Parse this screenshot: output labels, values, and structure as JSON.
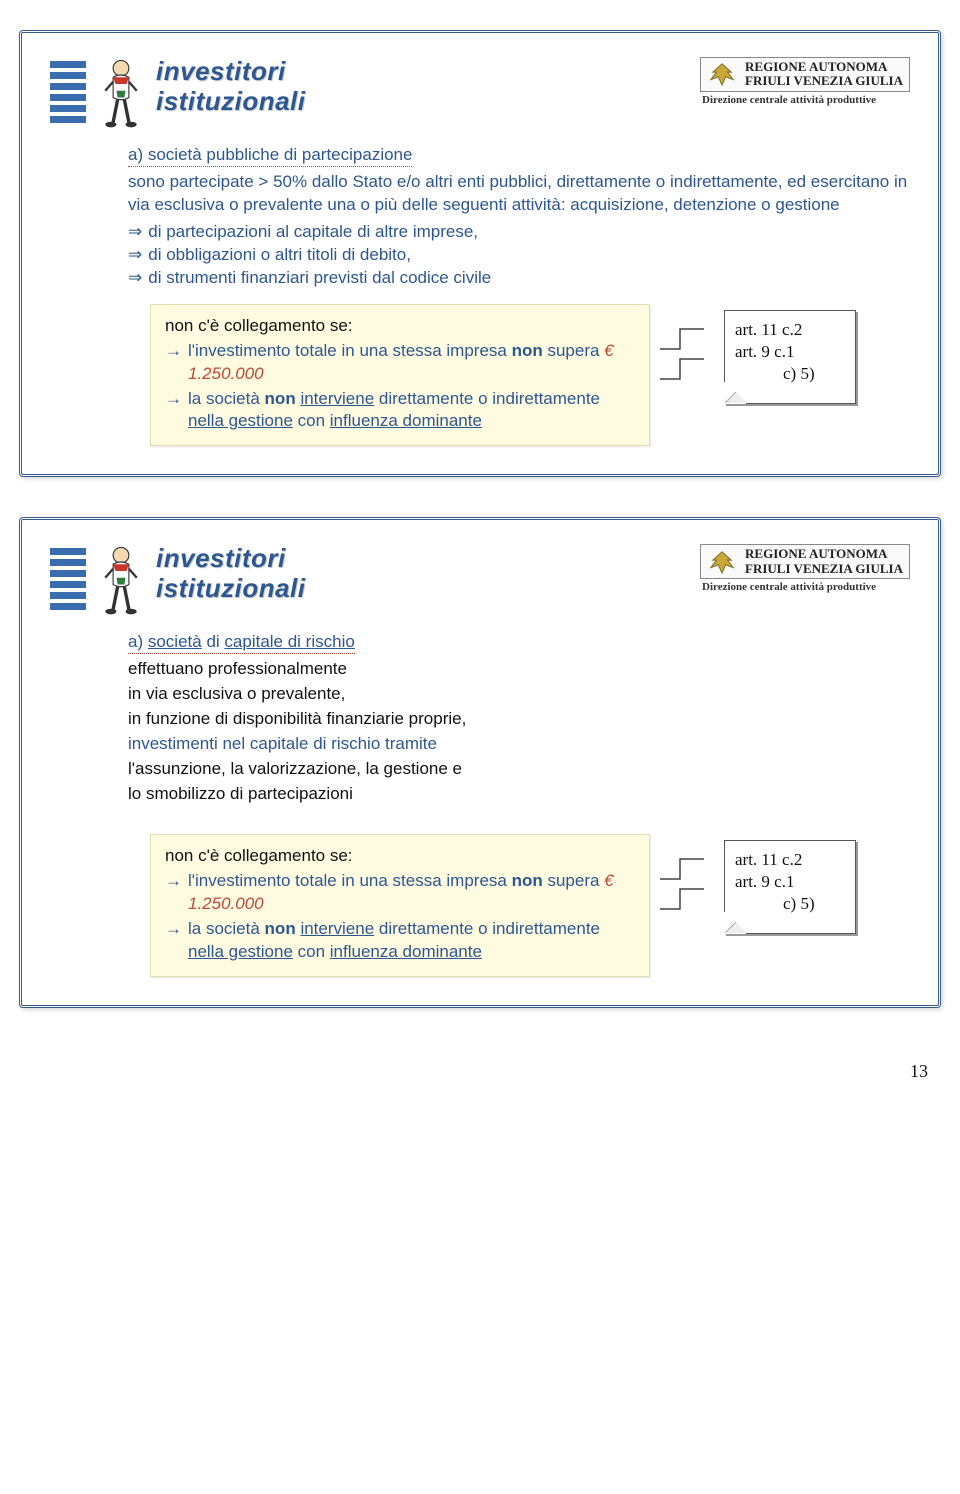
{
  "page_number": "13",
  "region": {
    "line1": "REGIONE AUTONOMA",
    "line2": "FRIULI VENEZIA GIULIA",
    "sub": "Direzione centrale attività produttive"
  },
  "slides": [
    {
      "title_line1": "investitori",
      "title_line2": "istituzionali",
      "lead": "a) società pubbliche di partecipazione",
      "paragraph": "sono partecipate > 50% dallo Stato e/o altri enti pubblici, direttamente o indirettamente, ed esercitano in via esclusiva o prevalente una o più delle seguenti attività: acquisizione, detenzione o gestione",
      "bullets": [
        "di partecipazioni al capitale di altre imprese,",
        "di obbligazioni o altri titoli di debito,",
        "di strumenti finanziari previsti dal codice civile"
      ],
      "callout": {
        "head": "non c'è collegamento se:",
        "items": [
          {
            "pre": "l'investimento totale in una stessa impresa ",
            "bold": "non",
            "post": " supera ",
            "amount": "€ 1.250.000"
          },
          {
            "pre": "la società ",
            "bold": "non",
            "post1": " ",
            "ul1": "interviene",
            "post2": " direttamente o indirettamente ",
            "ul2": "nella gestione",
            "post3": " con ",
            "ul3": "influenza dominante"
          }
        ]
      },
      "note": {
        "l1": "art. 11 c.2",
        "l2": "art.  9 c.1",
        "l3": "c) 5)"
      }
    },
    {
      "title_line1": "investitori",
      "title_line2": "istituzionali",
      "lead": "a) società di capitale di rischio",
      "paragraph_lines": [
        {
          "text": "effettuano professionalmente",
          "color": "black"
        },
        {
          "text": "in via esclusiva o prevalente,",
          "color": "black"
        },
        {
          "text": "in funzione di disponibilità finanziarie proprie,",
          "color": "black"
        },
        {
          "text": "investimenti nel capitale di rischio tramite",
          "color": "blue"
        },
        {
          "text": "l'assunzione, la valorizzazione, la gestione e",
          "color": "black"
        },
        {
          "text": "lo smobilizzo di partecipazioni",
          "color": "black"
        }
      ],
      "callout": {
        "head": "non c'è collegamento se:",
        "items": [
          {
            "pre": "l'investimento totale in una stessa impresa ",
            "bold": "non",
            "post": " supera ",
            "amount": "€ 1.250.000"
          },
          {
            "pre": "la società ",
            "bold": "non",
            "post1": " ",
            "ul1": "interviene",
            "post2": " direttamente o indirettamente ",
            "ul2": "nella gestione",
            "post3": " con ",
            "ul3": "influenza dominante"
          }
        ]
      },
      "note": {
        "l1": "art. 11 c.2",
        "l2": "art.  9 c.1",
        "l3": "c) 5)"
      }
    }
  ],
  "colors": {
    "blue": "#2c5790",
    "bar": "#3a6db0",
    "red": "#b94a3a",
    "callout_bg": "#fffbe0"
  }
}
